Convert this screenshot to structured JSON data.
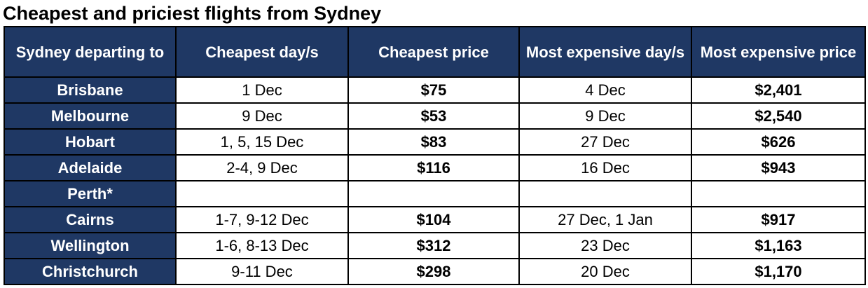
{
  "title": "Cheapest and priciest flights from Sydney",
  "table": {
    "headers": [
      "Sydney departing to",
      "Cheapest day/s",
      "Cheapest price",
      "Most expensive day/s",
      "Most expensive price"
    ],
    "rows": [
      {
        "destination": "Brisbane",
        "cheapest_days": "1 Dec",
        "cheapest_price": "$75",
        "expensive_days": "4 Dec",
        "expensive_price": "$2,401"
      },
      {
        "destination": "Melbourne",
        "cheapest_days": "9 Dec",
        "cheapest_price": "$53",
        "expensive_days": "9 Dec",
        "expensive_price": "$2,540"
      },
      {
        "destination": "Hobart",
        "cheapest_days": "1, 5, 15 Dec",
        "cheapest_price": "$83",
        "expensive_days": "27 Dec",
        "expensive_price": "$626"
      },
      {
        "destination": "Adelaide",
        "cheapest_days": "2-4, 9 Dec",
        "cheapest_price": "$116",
        "expensive_days": "16 Dec",
        "expensive_price": "$943"
      },
      {
        "destination": "Perth*",
        "cheapest_days": "",
        "cheapest_price": "",
        "expensive_days": "",
        "expensive_price": ""
      },
      {
        "destination": "Cairns",
        "cheapest_days": "1-7, 9-12 Dec",
        "cheapest_price": "$104",
        "expensive_days": "27 Dec, 1 Jan",
        "expensive_price": "$917"
      },
      {
        "destination": "Wellington",
        "cheapest_days": "1-6, 8-13 Dec",
        "cheapest_price": "$312",
        "expensive_days": "23 Dec",
        "expensive_price": "$1,163"
      },
      {
        "destination": "Christchurch",
        "cheapest_days": "9-11 Dec",
        "cheapest_price": "$298",
        "expensive_days": "20 Dec",
        "expensive_price": "$1,170"
      }
    ]
  },
  "colors": {
    "header_background": "#1f3864",
    "header_text": "#ffffff",
    "border": "#000000"
  }
}
